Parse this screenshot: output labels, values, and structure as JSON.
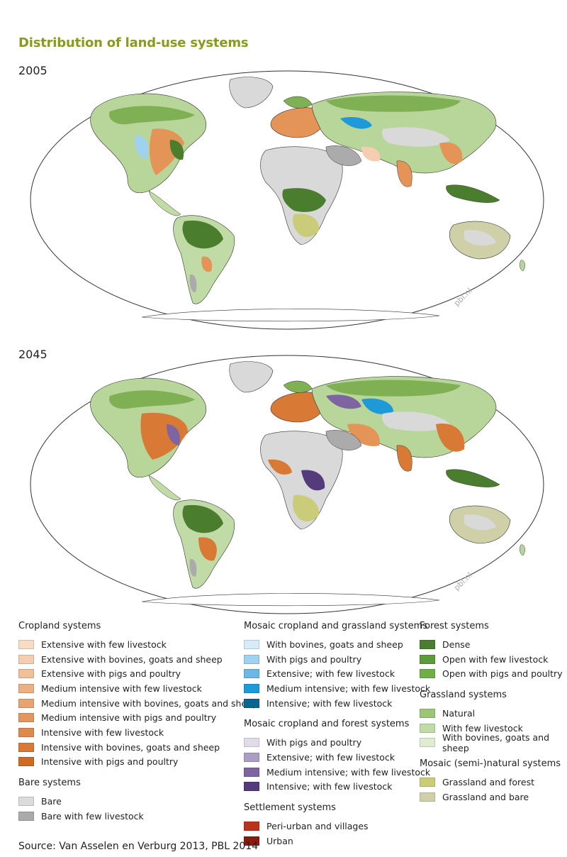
{
  "title": "Distribution of land-use systems",
  "maps": [
    {
      "year": "2005",
      "watermark": "pbl.nl"
    },
    {
      "year": "2045",
      "watermark": "pbl.nl"
    }
  ],
  "legend": {
    "columns": [
      [
        {
          "title": "Cropland systems",
          "items": [
            {
              "label": "Extensive with few livestock",
              "color": "#f8dcc5"
            },
            {
              "label": "Extensive with bovines, goats and sheep",
              "color": "#f5cdb0"
            },
            {
              "label": "Extensive with pigs and poultry",
              "color": "#f1bf98"
            },
            {
              "label": "Medium intensive with few livestock",
              "color": "#ecb083"
            },
            {
              "label": "Medium intensive with bovines, goats and sheep",
              "color": "#e8a372"
            },
            {
              "label": "Medium intensive with pigs and poultry",
              "color": "#e4965f"
            },
            {
              "label": "Intensive with few livestock",
              "color": "#df8a4d"
            },
            {
              "label": "Intensive with bovines, goats and sheep",
              "color": "#d87a36"
            },
            {
              "label": "Intensive with pigs and poultry",
              "color": "#d06a20"
            }
          ]
        },
        {
          "title": "Bare systems",
          "items": [
            {
              "label": "Bare",
              "color": "#dcdcdc"
            },
            {
              "label": "Bare with few livestock",
              "color": "#ababab"
            }
          ]
        }
      ],
      [
        {
          "title": "Mosaic cropland and grassland systems",
          "items": [
            {
              "label": "With bovines, goats and sheep",
              "color": "#d6ecf8"
            },
            {
              "label": "With pigs and poultry",
              "color": "#9fd1f0"
            },
            {
              "label": "Extensive; with few livestock",
              "color": "#6bb8e6"
            },
            {
              "label": "Medium intensive; with few livestock",
              "color": "#1f9ad8"
            },
            {
              "label": "Intensive; with few livestock",
              "color": "#0a6690"
            }
          ]
        },
        {
          "title": "Mosaic cropland and forest systems",
          "items": [
            {
              "label": "With pigs and poultry",
              "color": "#e1dbe8"
            },
            {
              "label": "Extensive; with few livestock",
              "color": "#ab9ec4"
            },
            {
              "label": "Medium intensive; with few livestock",
              "color": "#7e64a0"
            },
            {
              "label": "Intensive; with few livestock",
              "color": "#533b7c"
            }
          ]
        },
        {
          "title": "Settlement systems",
          "items": [
            {
              "label": "Peri-urban and villages",
              "color": "#b8341a"
            },
            {
              "label": "Urban",
              "color": "#8a1a0c"
            }
          ]
        }
      ],
      [
        {
          "title": "Forest systems",
          "items": [
            {
              "label": "Dense",
              "color": "#4b7d2e"
            },
            {
              "label": "Open with few livestock",
              "color": "#5e993a"
            },
            {
              "label": "Open with pigs and poultry",
              "color": "#72ae46"
            }
          ]
        },
        {
          "title": "Grassland systems",
          "items": [
            {
              "label": "Natural",
              "color": "#9cc57a"
            },
            {
              "label": "With few livestock",
              "color": "#c0dba5"
            },
            {
              "label": "With bovines, goats and sheep",
              "color": "#dfecd0"
            }
          ]
        },
        {
          "title": "Mosaic (semi-)natural systems",
          "items": [
            {
              "label": "Grassland and forest",
              "color": "#cbcc7a"
            },
            {
              "label": "Grassland and bare",
              "color": "#cfd0a8"
            }
          ]
        }
      ]
    ]
  },
  "source": "Source: Van Asselen en Verburg 2013, PBL 2014"
}
